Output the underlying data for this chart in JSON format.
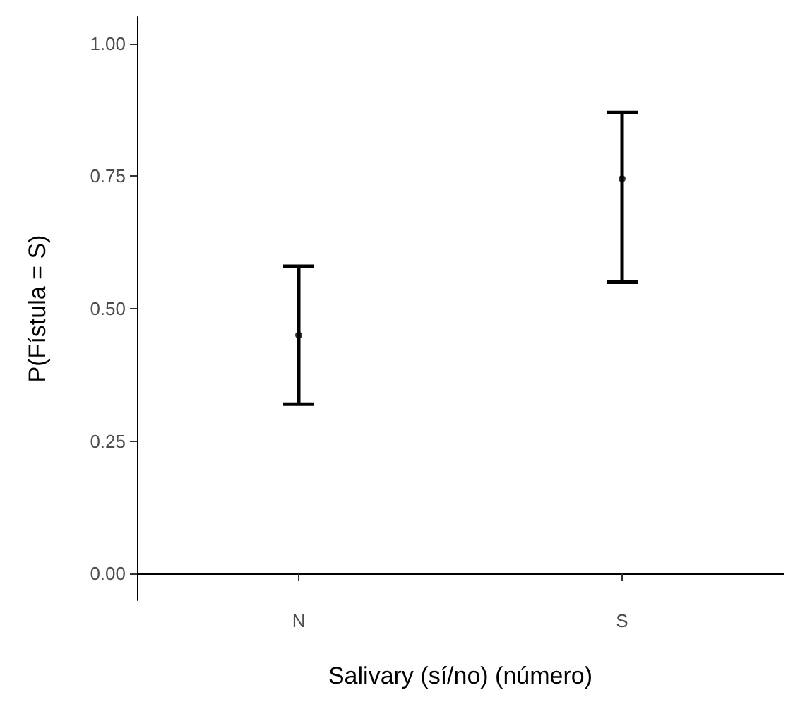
{
  "chart_data": {
    "type": "scatter",
    "xlabel": "Salivary (sí/no) (número)",
    "ylabel": "P(Fístula = S)",
    "categories": [
      "N",
      "S"
    ],
    "values": [
      0.45,
      0.745
    ],
    "errors": [
      [
        0.32,
        0.58
      ],
      [
        0.55,
        0.87
      ]
    ],
    "color": "#000000",
    "marker": "circle",
    "grid": false,
    "ylim": [
      -0.05,
      1.05
    ],
    "yticks": [
      {
        "value": 0,
        "label": "0.00"
      },
      {
        "value": 0.25,
        "label": "0.25"
      },
      {
        "value": 0.5,
        "label": "0.50"
      },
      {
        "value": 0.75,
        "label": "0.75"
      },
      {
        "value": 1,
        "label": "1.00"
      }
    ]
  }
}
